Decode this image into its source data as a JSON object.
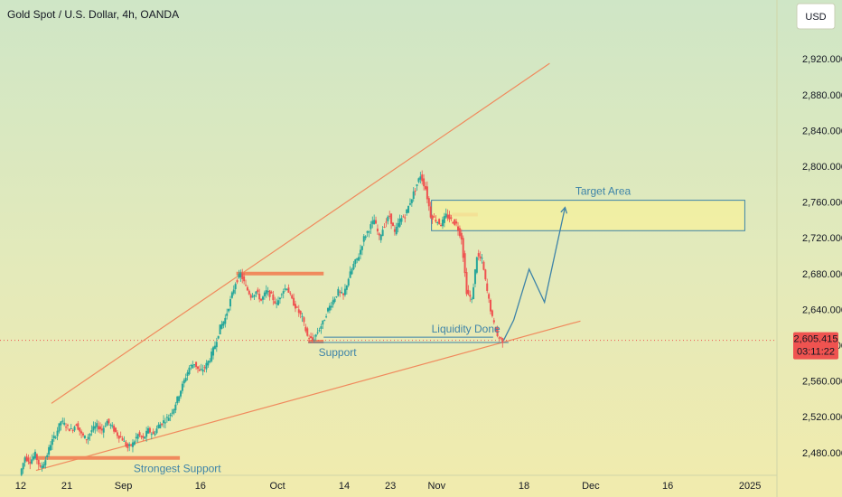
{
  "chart_data": {
    "type": "candlestick",
    "title": "Gold Spot / U.S. Dollar, 4h, OANDA",
    "currency": "USD",
    "colors": {
      "up": "#26a69a",
      "down": "#ef5350",
      "trend": "#f08a5d",
      "annotation": "#3d83a8",
      "target_fill": "#f3f0a0"
    },
    "x_ticks": [
      {
        "label": "12",
        "x": 0
      },
      {
        "label": "21",
        "x": 9
      },
      {
        "label": "Sep",
        "x": 20
      },
      {
        "label": "16",
        "x": 35
      },
      {
        "label": "Oct",
        "x": 50
      },
      {
        "label": "14",
        "x": 63
      },
      {
        "label": "23",
        "x": 72
      },
      {
        "label": "Nov",
        "x": 81
      },
      {
        "label": "18",
        "x": 98
      },
      {
        "label": "Dec",
        "x": 111
      },
      {
        "label": "16",
        "x": 126
      },
      {
        "label": "2025",
        "x": 142
      }
    ],
    "y_ticks": [
      "2,480.000",
      "2,520.000",
      "2,560.000",
      "2,600.000",
      "2,640.000",
      "2,680.000",
      "2,720.000",
      "2,760.000",
      "2,800.000",
      "2,840.000",
      "2,880.000",
      "2,920.000"
    ],
    "y_tick_values": [
      2480,
      2520,
      2560,
      2600,
      2640,
      2680,
      2720,
      2760,
      2800,
      2840,
      2880,
      2920
    ],
    "xlim": [
      -0.5,
      145.5
    ],
    "ylim": [
      2455,
      2960
    ],
    "price_path": [
      [
        0,
        2455
      ],
      [
        1,
        2475
      ],
      [
        2,
        2470
      ],
      [
        3,
        2478
      ],
      [
        4,
        2462
      ],
      [
        5,
        2472
      ],
      [
        6,
        2490
      ],
      [
        7,
        2500
      ],
      [
        8,
        2515
      ],
      [
        9,
        2510
      ],
      [
        10,
        2505
      ],
      [
        11,
        2512
      ],
      [
        12,
        2500
      ],
      [
        13,
        2495
      ],
      [
        14,
        2505
      ],
      [
        15,
        2510
      ],
      [
        16,
        2505
      ],
      [
        17,
        2515
      ],
      [
        18,
        2508
      ],
      [
        19,
        2500
      ],
      [
        20,
        2495
      ],
      [
        21,
        2485
      ],
      [
        22,
        2490
      ],
      [
        23,
        2500
      ],
      [
        24,
        2495
      ],
      [
        25,
        2505
      ],
      [
        26,
        2500
      ],
      [
        27,
        2510
      ],
      [
        28,
        2515
      ],
      [
        29,
        2520
      ],
      [
        30,
        2530
      ],
      [
        31,
        2545
      ],
      [
        32,
        2560
      ],
      [
        33,
        2575
      ],
      [
        34,
        2580
      ],
      [
        35,
        2570
      ],
      [
        36,
        2575
      ],
      [
        37,
        2585
      ],
      [
        38,
        2600
      ],
      [
        39,
        2620
      ],
      [
        40,
        2630
      ],
      [
        41,
        2650
      ],
      [
        42,
        2670
      ],
      [
        43,
        2680
      ],
      [
        44,
        2665
      ],
      [
        45,
        2655
      ],
      [
        46,
        2660
      ],
      [
        47,
        2650
      ],
      [
        48,
        2660
      ],
      [
        49,
        2655
      ],
      [
        50,
        2645
      ],
      [
        51,
        2660
      ],
      [
        52,
        2665
      ],
      [
        53,
        2650
      ],
      [
        54,
        2640
      ],
      [
        55,
        2630
      ],
      [
        56,
        2610
      ],
      [
        57,
        2605
      ],
      [
        58,
        2615
      ],
      [
        59,
        2625
      ],
      [
        60,
        2640
      ],
      [
        61,
        2650
      ],
      [
        62,
        2660
      ],
      [
        63,
        2655
      ],
      [
        64,
        2675
      ],
      [
        65,
        2690
      ],
      [
        66,
        2700
      ],
      [
        67,
        2720
      ],
      [
        68,
        2730
      ],
      [
        69,
        2740
      ],
      [
        70,
        2720
      ],
      [
        71,
        2735
      ],
      [
        72,
        2745
      ],
      [
        73,
        2725
      ],
      [
        74,
        2740
      ],
      [
        75,
        2745
      ],
      [
        76,
        2760
      ],
      [
        77,
        2775
      ],
      [
        78,
        2790
      ],
      [
        79,
        2775
      ],
      [
        80,
        2745
      ],
      [
        81,
        2740
      ],
      [
        82,
        2735
      ],
      [
        83,
        2745
      ],
      [
        84,
        2740
      ],
      [
        85,
        2735
      ],
      [
        86,
        2720
      ],
      [
        87,
        2660
      ],
      [
        88,
        2650
      ],
      [
        89,
        2700
      ],
      [
        90,
        2695
      ],
      [
        91,
        2660
      ],
      [
        92,
        2630
      ],
      [
        93,
        2610
      ],
      [
        94,
        2605
      ]
    ],
    "annotations": [
      {
        "type": "trendline",
        "points": [
          [
            6,
            2535
          ],
          [
            103,
            2915
          ]
        ]
      },
      {
        "type": "trendline",
        "points": [
          [
            3,
            2460
          ],
          [
            109,
            2627
          ]
        ]
      },
      {
        "type": "level",
        "points": [
          [
            3,
            2474
          ],
          [
            31,
            2474
          ]
        ]
      },
      {
        "type": "level",
        "points": [
          [
            42,
            2680
          ],
          [
            59,
            2680
          ]
        ]
      },
      {
        "type": "level",
        "points": [
          [
            56,
            2604
          ],
          [
            59,
            2604
          ]
        ]
      },
      {
        "type": "level",
        "points": [
          [
            84,
            2746
          ],
          [
            89,
            2746
          ]
        ]
      },
      {
        "type": "level",
        "points": [
          [
            59,
            2609
          ],
          [
            92,
            2609
          ]
        ]
      },
      {
        "type": "level",
        "points": [
          [
            56,
            2603
          ],
          [
            95,
            2603
          ]
        ]
      },
      {
        "type": "target_zone",
        "x": [
          80,
          141
        ],
        "y": [
          2728,
          2762
        ]
      },
      {
        "type": "projection",
        "points": [
          [
            94,
            2605
          ],
          [
            96,
            2628
          ],
          [
            99,
            2685
          ],
          [
            102,
            2648
          ],
          [
            106,
            2754
          ]
        ]
      },
      {
        "type": "label",
        "text": "Target Area",
        "at": [
          108,
          2768
        ]
      },
      {
        "type": "label",
        "text": "Liquidity Done",
        "at": [
          80,
          2614
        ]
      },
      {
        "type": "label",
        "text": "Support",
        "at": [
          58,
          2588
        ]
      },
      {
        "type": "label",
        "text": "Strongest Support",
        "at": [
          22,
          2458
        ]
      }
    ],
    "last_price": "2,605.415",
    "last_price_value": 2605.415,
    "countdown": "03:11:22"
  }
}
